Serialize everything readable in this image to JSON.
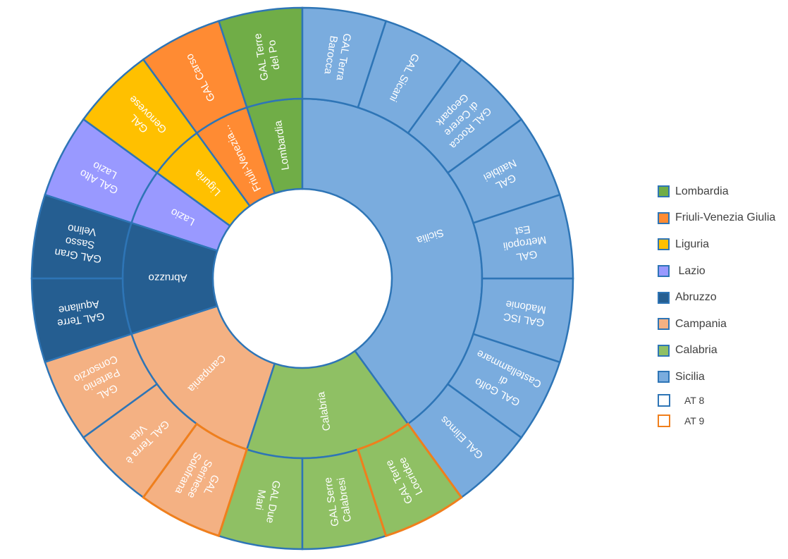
{
  "chart_data": {
    "type": "sunburst",
    "inner_ring": [
      {
        "label": "Lombardia",
        "value": 1,
        "color": "#70ad47"
      },
      {
        "label": "Friuli-Venezia...",
        "value": 1,
        "color": "#ff8b33"
      },
      {
        "label": "Liguria",
        "value": 1,
        "color": "#ffc000"
      },
      {
        "label": "Lazio",
        "value": 1,
        "color": "#9999ff"
      },
      {
        "label": "Abruzzo",
        "value": 2,
        "color": "#255e91"
      },
      {
        "label": "Campania",
        "value": 3,
        "color": "#f4b183"
      },
      {
        "label": "Calabria",
        "value": 3,
        "color": "#8fc064"
      },
      {
        "label": "Sicilia",
        "value": 8,
        "color": "#7aacde"
      }
    ],
    "outer_ring": [
      {
        "label": "GAL Terre del Po",
        "parent": "Lombardia",
        "value": 1,
        "group": "AT 8"
      },
      {
        "label": "GAL Carso",
        "parent": "Friuli-Venezia Giulia",
        "value": 1,
        "group": "AT 8"
      },
      {
        "label": "GAL Genovese",
        "parent": "Liguria",
        "value": 1,
        "group": "AT 8"
      },
      {
        "label": "GAL Alto Lazio",
        "parent": "Lazio",
        "value": 1,
        "group": "AT 8"
      },
      {
        "label": "GAL Gran Sasso Velino",
        "parent": "Abruzzo",
        "value": 1,
        "group": "AT 8"
      },
      {
        "label": "GAL Terre Aquilane",
        "parent": "Abruzzo",
        "value": 1,
        "group": "AT 8"
      },
      {
        "label": "GAL Partenio Consorzio",
        "parent": "Campania",
        "value": 1,
        "group": "AT 8"
      },
      {
        "label": "GAL Terra è Vita",
        "parent": "Campania",
        "value": 1,
        "group": "AT 8"
      },
      {
        "label": "GAL Serinese Solofrana",
        "parent": "Campania",
        "value": 1,
        "group": "AT 9"
      },
      {
        "label": "GAL Due Mari",
        "parent": "Calabria",
        "value": 1,
        "group": "AT 8"
      },
      {
        "label": "GAL Serre Calabresi",
        "parent": "Calabria",
        "value": 1,
        "group": "AT 8"
      },
      {
        "label": "GAL Terre Locridee",
        "parent": "Calabria",
        "value": 1,
        "group": "AT 9"
      },
      {
        "label": "GAL Elimos",
        "parent": "Sicilia",
        "value": 1,
        "group": "AT 8"
      },
      {
        "label": "GAL Golfo di Castellammare",
        "parent": "Sicilia",
        "value": 1,
        "group": "AT 8"
      },
      {
        "label": "GAL ISC Madonie",
        "parent": "Sicilia",
        "value": 1,
        "group": "AT 8"
      },
      {
        "label": "GAL Metropoli Est",
        "parent": "Sicilia",
        "value": 1,
        "group": "AT 8"
      },
      {
        "label": "GAL Natiblei",
        "parent": "Sicilia",
        "value": 1,
        "group": "AT 8"
      },
      {
        "label": "GAL Rocca di Cerere Geopark",
        "parent": "Sicilia",
        "value": 1,
        "group": "AT 8"
      },
      {
        "label": "GAL Sicani",
        "parent": "Sicilia",
        "value": 1,
        "group": "AT 8"
      },
      {
        "label": "GAL Terra Barocca",
        "parent": "Sicilia",
        "value": 1,
        "group": "AT 8"
      }
    ],
    "border_colors": {
      "AT 8": "#2e75b6",
      "AT 9": "#f07f1c"
    },
    "legend_position": "right",
    "legend": {
      "regions": [
        {
          "label": "Lombardia",
          "color": "#70ad47"
        },
        {
          "label": "Friuli-Venezia Giulia",
          "color": "#ff8b33"
        },
        {
          "label": "Liguria",
          "color": "#ffc000"
        },
        {
          "label": " Lazio",
          "color": "#9999ff"
        },
        {
          "label": "Abruzzo",
          "color": "#255e91"
        },
        {
          "label": "Campania",
          "color": "#f4b183"
        },
        {
          "label": "Calabria",
          "color": "#8fc064"
        },
        {
          "label": "Sicilia",
          "color": "#7aacde"
        }
      ],
      "borders": [
        {
          "label": "AT 8",
          "color": "#2e75b6"
        },
        {
          "label": "AT 9",
          "color": "#f07f1c"
        }
      ]
    }
  }
}
